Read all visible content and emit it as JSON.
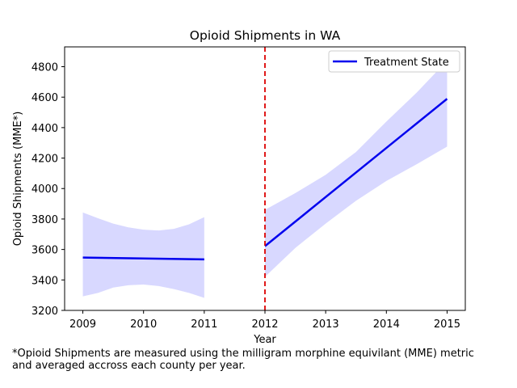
{
  "chart_data": {
    "type": "line",
    "title": "Opioid Shipments in WA",
    "xlabel": "Year",
    "ylabel": "Opioid Shipments (MME*)",
    "xlim": [
      2008.7,
      2015.3
    ],
    "ylim": [
      3200,
      4930
    ],
    "xticks": [
      2009,
      2010,
      2011,
      2012,
      2013,
      2014,
      2015
    ],
    "yticks": [
      3200,
      3400,
      3600,
      3800,
      4000,
      4200,
      4400,
      4600,
      4800
    ],
    "grid": false,
    "legend": {
      "position": "top-right",
      "entries": [
        "Treatment State"
      ]
    },
    "vline": {
      "x": 2012,
      "color": "#dd0000",
      "style": "dashed"
    },
    "series": [
      {
        "name": "Treatment State",
        "color": "#0000ee",
        "segments": [
          {
            "x": [
              2009,
              2011
            ],
            "y": [
              3547,
              3535
            ],
            "band": {
              "x": [
                2009,
                2009.25,
                2009.5,
                2009.75,
                2010,
                2010.25,
                2010.5,
                2010.75,
                2011
              ],
              "upper": [
                3843,
                3805,
                3770,
                3745,
                3730,
                3725,
                3735,
                3765,
                3812
              ],
              "lower": [
                3292,
                3315,
                3350,
                3365,
                3370,
                3360,
                3340,
                3315,
                3282
              ]
            }
          },
          {
            "x": [
              2012,
              2015
            ],
            "y": [
              3622,
              4589
            ],
            "band": {
              "x": [
                2012,
                2012.5,
                2013,
                2013.5,
                2014,
                2014.5,
                2015
              ],
              "upper": [
                3860,
                3970,
                4090,
                4240,
                4440,
                4630,
                4840
              ],
              "lower": [
                3420,
                3610,
                3770,
                3920,
                4050,
                4160,
                4275
              ]
            }
          }
        ]
      }
    ],
    "band_color": "#d8d8ff"
  },
  "footnote": "*Opioid Shipments are measured using the milligram morphine equivilant (MME) metric\nand averaged accross each county per year."
}
